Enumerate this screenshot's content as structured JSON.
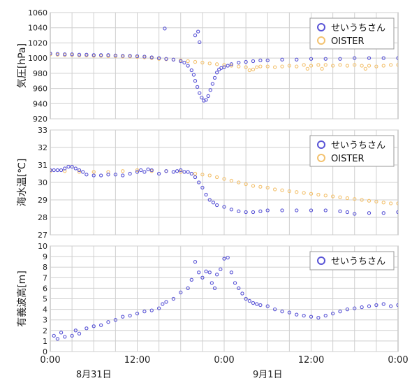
{
  "colors": {
    "seiuchi": "#5a55d6",
    "oister": "#f3c270"
  },
  "x_ticks": [
    "0:00",
    "12:00",
    "0:00",
    "12:00",
    "0:00"
  ],
  "x_dates": [
    "8月31日",
    "9月1日"
  ],
  "chart_data": [
    {
      "type": "scatter",
      "ylabel": "気圧[hPa]",
      "ylim": [
        920,
        1060
      ],
      "yticks": [
        920,
        940,
        960,
        980,
        1000,
        1020,
        1040,
        1060
      ],
      "xlim_hours": [
        0,
        48
      ],
      "legend_position": "top-right",
      "series": [
        {
          "name": "せいうちさん",
          "points": [
            [
              0,
              1006
            ],
            [
              1,
              1005.5
            ],
            [
              2,
              1005
            ],
            [
              3,
              1005
            ],
            [
              4,
              1004.5
            ],
            [
              5,
              1004.5
            ],
            [
              6,
              1004
            ],
            [
              7,
              1004
            ],
            [
              8,
              1004
            ],
            [
              9,
              1003.5
            ],
            [
              10,
              1003
            ],
            [
              11,
              1003
            ],
            [
              12,
              1002.5
            ],
            [
              13,
              1002
            ],
            [
              14,
              1001
            ],
            [
              15,
              1000
            ],
            [
              16,
              999
            ],
            [
              17,
              998
            ],
            [
              18,
              996
            ],
            [
              18.5,
              994
            ],
            [
              19,
              990
            ],
            [
              19.5,
              984
            ],
            [
              19.8,
              978
            ],
            [
              20,
              970
            ],
            [
              20.3,
              962
            ],
            [
              20.6,
              954
            ],
            [
              20.9,
              948
            ],
            [
              21.2,
              944
            ],
            [
              21.5,
              945
            ],
            [
              21.8,
              950
            ],
            [
              22.1,
              958
            ],
            [
              22.4,
              966
            ],
            [
              22.7,
              974
            ],
            [
              23,
              981
            ],
            [
              23.3,
              985
            ],
            [
              23.6,
              987
            ],
            [
              24,
              988
            ],
            [
              24.5,
              990
            ],
            [
              25,
              992
            ],
            [
              26,
              994
            ],
            [
              27,
              995
            ],
            [
              28,
              996
            ],
            [
              29,
              997
            ],
            [
              30,
              997
            ],
            [
              32,
              998
            ],
            [
              34,
              998
            ],
            [
              36,
              999
            ],
            [
              38,
              999
            ],
            [
              40,
              999
            ],
            [
              42,
              1000
            ],
            [
              44,
              1000
            ],
            [
              46,
              1000
            ],
            [
              48,
              1000
            ],
            [
              15.8,
              1039
            ],
            [
              20,
              1030
            ],
            [
              20.4,
              1035
            ],
            [
              20.6,
              1021
            ]
          ]
        },
        {
          "name": "OISTER",
          "points": [
            [
              0,
              1005
            ],
            [
              1,
              1004.5
            ],
            [
              2,
              1004
            ],
            [
              3,
              1004
            ],
            [
              4,
              1003.5
            ],
            [
              5,
              1003.5
            ],
            [
              6,
              1003
            ],
            [
              7,
              1003
            ],
            [
              8,
              1002.5
            ],
            [
              9,
              1002.5
            ],
            [
              10,
              1002
            ],
            [
              11,
              1002
            ],
            [
              12,
              1001.5
            ],
            [
              13,
              1001
            ],
            [
              14,
              1000
            ],
            [
              15,
              999
            ],
            [
              16,
              998.5
            ],
            [
              17,
              998
            ],
            [
              18,
              997
            ],
            [
              19,
              996
            ],
            [
              20,
              995
            ],
            [
              21,
              994
            ],
            [
              22,
              993
            ],
            [
              23,
              992
            ],
            [
              24,
              991
            ],
            [
              25,
              990
            ],
            [
              26,
              989
            ],
            [
              27,
              988
            ],
            [
              27.5,
              984
            ],
            [
              28,
              985
            ],
            [
              28.5,
              988
            ],
            [
              29,
              989
            ],
            [
              30,
              989
            ],
            [
              31,
              988
            ],
            [
              32,
              989
            ],
            [
              33,
              990
            ],
            [
              34,
              989
            ],
            [
              35,
              991
            ],
            [
              35.5,
              986
            ],
            [
              36,
              990
            ],
            [
              37,
              991
            ],
            [
              37.5,
              986
            ],
            [
              38,
              991
            ],
            [
              39,
              990
            ],
            [
              40,
              991
            ],
            [
              41,
              990
            ],
            [
              42,
              991
            ],
            [
              43,
              990
            ],
            [
              43.5,
              986
            ],
            [
              44,
              990
            ],
            [
              45,
              989
            ],
            [
              46,
              990
            ],
            [
              47,
              991
            ],
            [
              48,
              991
            ]
          ]
        }
      ]
    },
    {
      "type": "scatter",
      "ylabel": "海水温[℃]",
      "ylim": [
        27,
        33
      ],
      "yticks": [
        27,
        28,
        29,
        30,
        31,
        32,
        33
      ],
      "xlim_hours": [
        0,
        48
      ],
      "legend_position": "top-right",
      "series": [
        {
          "name": "せいうちさん",
          "points": [
            [
              0,
              30.7
            ],
            [
              0.5,
              30.7
            ],
            [
              1,
              30.7
            ],
            [
              1.5,
              30.7
            ],
            [
              2,
              30.8
            ],
            [
              2.5,
              30.9
            ],
            [
              3,
              30.9
            ],
            [
              3.5,
              30.8
            ],
            [
              4,
              30.7
            ],
            [
              4.5,
              30.6
            ],
            [
              5,
              30.45
            ],
            [
              6,
              30.4
            ],
            [
              7,
              30.4
            ],
            [
              8,
              30.45
            ],
            [
              9,
              30.45
            ],
            [
              10,
              30.4
            ],
            [
              11,
              30.5
            ],
            [
              12,
              30.6
            ],
            [
              12.5,
              30.7
            ],
            [
              13,
              30.6
            ],
            [
              13.5,
              30.75
            ],
            [
              14,
              30.7
            ],
            [
              15,
              30.5
            ],
            [
              16,
              30.65
            ],
            [
              17,
              30.6
            ],
            [
              17.5,
              30.65
            ],
            [
              18,
              30.7
            ],
            [
              18.5,
              30.6
            ],
            [
              19,
              30.6
            ],
            [
              19.5,
              30.5
            ],
            [
              20,
              30.3
            ],
            [
              20.5,
              30.0
            ],
            [
              21,
              29.7
            ],
            [
              21.5,
              29.3
            ],
            [
              22,
              29.0
            ],
            [
              22.5,
              28.85
            ],
            [
              23,
              28.7
            ],
            [
              24,
              28.6
            ],
            [
              25,
              28.45
            ],
            [
              26,
              28.35
            ],
            [
              27,
              28.3
            ],
            [
              28,
              28.3
            ],
            [
              29,
              28.35
            ],
            [
              30,
              28.4
            ],
            [
              32,
              28.4
            ],
            [
              34,
              28.4
            ],
            [
              36,
              28.4
            ],
            [
              38,
              28.4
            ],
            [
              40,
              28.35
            ],
            [
              41,
              28.3
            ],
            [
              42,
              28.2
            ],
            [
              44,
              28.25
            ],
            [
              46,
              28.25
            ],
            [
              48,
              28.3
            ]
          ]
        },
        {
          "name": "OISTER",
          "points": [
            [
              0,
              30.65
            ],
            [
              2,
              30.65
            ],
            [
              4,
              30.6
            ],
            [
              6,
              30.6
            ],
            [
              8,
              30.6
            ],
            [
              10,
              30.65
            ],
            [
              12,
              30.7
            ],
            [
              14,
              30.65
            ],
            [
              16,
              30.65
            ],
            [
              18,
              30.6
            ],
            [
              20,
              30.5
            ],
            [
              21,
              30.45
            ],
            [
              22,
              30.4
            ],
            [
              23,
              30.3
            ],
            [
              24,
              30.2
            ],
            [
              25,
              30.1
            ],
            [
              26,
              30.0
            ],
            [
              27,
              29.9
            ],
            [
              28,
              29.8
            ],
            [
              29,
              29.75
            ],
            [
              30,
              29.7
            ],
            [
              31,
              29.6
            ],
            [
              32,
              29.55
            ],
            [
              33,
              29.5
            ],
            [
              34,
              29.45
            ],
            [
              35,
              29.4
            ],
            [
              36,
              29.35
            ],
            [
              37,
              29.3
            ],
            [
              38,
              29.25
            ],
            [
              39,
              29.2
            ],
            [
              40,
              29.15
            ],
            [
              41,
              29.1
            ],
            [
              42,
              29.05
            ],
            [
              43,
              29.0
            ],
            [
              44,
              28.95
            ],
            [
              45,
              28.9
            ],
            [
              46,
              28.85
            ],
            [
              47,
              28.8
            ],
            [
              48,
              28.8
            ]
          ]
        }
      ]
    },
    {
      "type": "scatter",
      "ylabel": "有義波高[m]",
      "ylim": [
        0,
        10
      ],
      "yticks": [
        0,
        1,
        2,
        3,
        4,
        5,
        6,
        7,
        8,
        9,
        10
      ],
      "xlim_hours": [
        0,
        48
      ],
      "legend_position": "top-right",
      "series": [
        {
          "name": "せいうちさん",
          "points": [
            [
              0.5,
              1.5
            ],
            [
              1,
              1.2
            ],
            [
              1.5,
              1.8
            ],
            [
              2,
              1.4
            ],
            [
              3,
              1.5
            ],
            [
              3.5,
              2.0
            ],
            [
              4,
              1.7
            ],
            [
              5,
              2.2
            ],
            [
              6,
              2.4
            ],
            [
              7,
              2.5
            ],
            [
              8,
              2.8
            ],
            [
              9,
              3.0
            ],
            [
              10,
              3.3
            ],
            [
              11,
              3.4
            ],
            [
              12,
              3.6
            ],
            [
              13,
              3.8
            ],
            [
              14,
              3.9
            ],
            [
              15,
              4.1
            ],
            [
              15.5,
              4.5
            ],
            [
              16,
              4.7
            ],
            [
              17,
              5.0
            ],
            [
              18,
              5.6
            ],
            [
              19,
              6.0
            ],
            [
              19.5,
              6.8
            ],
            [
              20,
              8.5
            ],
            [
              20.5,
              7.5
            ],
            [
              21,
              7.0
            ],
            [
              21.5,
              7.6
            ],
            [
              22,
              7.5
            ],
            [
              22.3,
              6.5
            ],
            [
              22.7,
              6.0
            ],
            [
              23,
              7.3
            ],
            [
              23.5,
              7.8
            ],
            [
              24,
              8.8
            ],
            [
              24.5,
              8.9
            ],
            [
              25,
              7.5
            ],
            [
              25.5,
              6.5
            ],
            [
              26,
              6.0
            ],
            [
              26.5,
              5.5
            ],
            [
              27,
              5.0
            ],
            [
              27.5,
              4.8
            ],
            [
              28,
              4.6
            ],
            [
              28.5,
              4.5
            ],
            [
              29,
              4.4
            ],
            [
              30,
              4.3
            ],
            [
              31,
              4.0
            ],
            [
              32,
              3.8
            ],
            [
              33,
              3.7
            ],
            [
              34,
              3.5
            ],
            [
              35,
              3.4
            ],
            [
              36,
              3.3
            ],
            [
              37,
              3.2
            ],
            [
              38,
              3.4
            ],
            [
              39,
              3.6
            ],
            [
              40,
              3.8
            ],
            [
              41,
              4.0
            ],
            [
              42,
              4.1
            ],
            [
              43,
              4.2
            ],
            [
              44,
              4.3
            ],
            [
              45,
              4.4
            ],
            [
              46,
              4.5
            ],
            [
              47,
              4.3
            ],
            [
              48,
              4.4
            ]
          ]
        }
      ]
    }
  ]
}
